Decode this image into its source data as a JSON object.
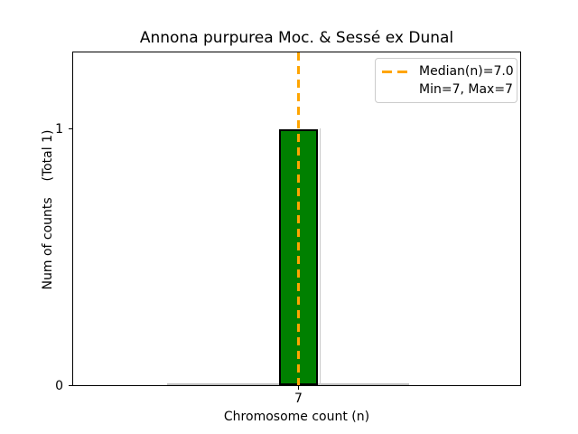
{
  "page": {
    "background": "#ffffff"
  },
  "chart_data": {
    "type": "bar",
    "title": "Annona purpurea Moc. & Sessé ex Dunal",
    "xlabel": "Chromosome count (n)",
    "ylabel": "Num of counts    (Total 1)",
    "x": [
      7
    ],
    "values": [
      1
    ],
    "total_counts": 1,
    "xtick_labels": [
      "7"
    ],
    "ytick_labels": [
      "0",
      "1"
    ],
    "ylim": [
      0,
      1.3
    ],
    "grid": false,
    "bar_color": "#008000",
    "bar_edge_color": "#000000",
    "median": {
      "value": 7.0,
      "color": "#FFA500",
      "linestyle": "dashed"
    },
    "min": 7,
    "max": 7,
    "legend": {
      "position": "upper right",
      "entries": [
        {
          "label": "Median(n)=7.0",
          "handle": "orange-dashed-line"
        },
        {
          "label": "Min=7, Max=7",
          "handle": "none"
        }
      ]
    }
  }
}
